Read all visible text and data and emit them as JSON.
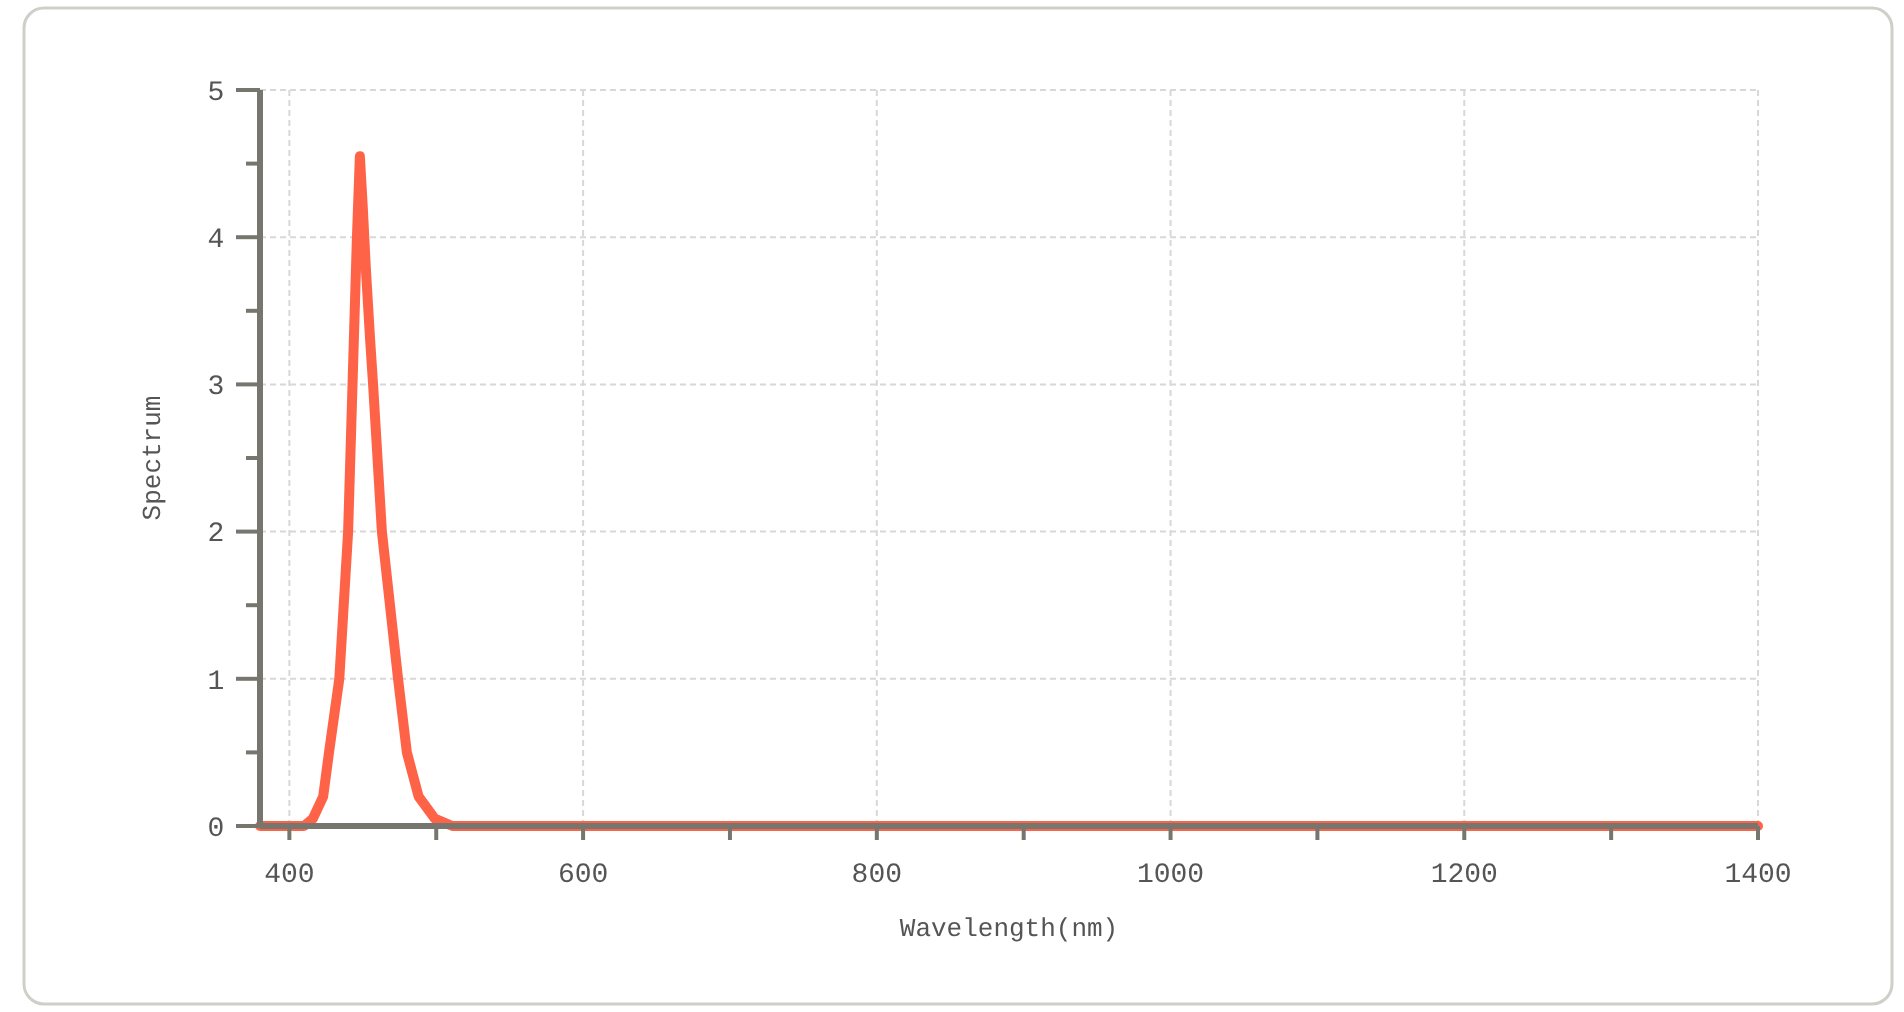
{
  "chart_data": {
    "type": "line",
    "xlabel": "Wavelength(nm)",
    "ylabel": "Spectrum",
    "series": [
      {
        "color": "#ff6347",
        "x": [
          380,
          410,
          416,
          423,
          427,
          434,
          440,
          443,
          446,
          448,
          450,
          452,
          455,
          457,
          463,
          474,
          480,
          488,
          499,
          511,
          600,
          800,
          1000,
          1200,
          1400
        ],
        "values": [
          0,
          0,
          0.05,
          0.2,
          0.5,
          1,
          2,
          3,
          4,
          4.55,
          4.2,
          3.8,
          3.3,
          3,
          2,
          1,
          0.5,
          0.2,
          0.05,
          0,
          0,
          0,
          0,
          0,
          0
        ]
      }
    ],
    "xlim": [
      380,
      1400
    ],
    "ylim": [
      0,
      5
    ],
    "xticks": [
      400,
      {
        "value": 500,
        "label": null
      },
      600,
      {
        "value": 700,
        "label": null
      },
      800,
      {
        "value": 900,
        "label": null
      },
      1000,
      {
        "value": 1100,
        "label": null
      },
      1200,
      {
        "value": 1300,
        "label": null
      },
      1400
    ],
    "yticks": [
      0,
      {
        "value": 0.5,
        "label": null
      },
      1,
      {
        "value": 1.5,
        "label": null
      },
      2,
      {
        "value": 2.5,
        "label": null
      },
      3,
      {
        "value": 3.5,
        "label": null
      },
      4,
      {
        "value": 4.5,
        "label": null
      },
      5
    ],
    "grid": true,
    "marker": "none",
    "line_style": "solid"
  }
}
